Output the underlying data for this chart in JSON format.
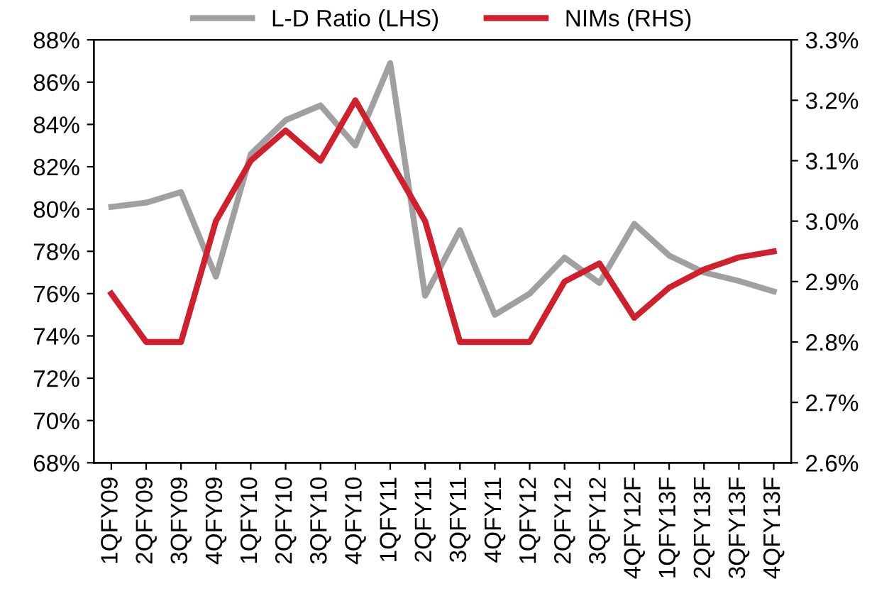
{
  "chart_data": {
    "type": "line",
    "categories": [
      "1QFY09",
      "2QFY09",
      "3QFY09",
      "4QFY09",
      "1QFY10",
      "2QFY10",
      "3QFY10",
      "4QFY10",
      "1QFY11",
      "2QFY11",
      "3QFY11",
      "4QFY11",
      "1QFY12",
      "2QFY12",
      "3QFY12",
      "4QFY12F",
      "1QFY13F",
      "2QFY13F",
      "3QFY13F",
      "4QFY13F"
    ],
    "series": [
      {
        "name": "L-D Ratio (LHS)",
        "color": "#a0a0a0",
        "values": [
          80.1,
          80.3,
          80.8,
          76.8,
          82.6,
          84.2,
          84.9,
          83.0,
          86.9,
          75.9,
          79.0,
          75.0,
          76.0,
          77.7,
          76.5,
          79.3,
          77.8,
          77.0,
          76.6,
          76.1
        ]
      },
      {
        "name": "NIMs (RHS)",
        "color": "#d0202e",
        "axis": "y2",
        "values": [
          2.88,
          2.8,
          2.8,
          3.0,
          3.1,
          3.15,
          3.1,
          3.2,
          3.1,
          3.0,
          2.8,
          2.8,
          2.8,
          2.9,
          2.93,
          2.84,
          2.89,
          2.92,
          2.94,
          2.95
        ]
      }
    ],
    "ylim": [
      68,
      88
    ],
    "yticks": [
      {
        "value": 68,
        "label": "68%"
      },
      {
        "value": 70,
        "label": "70%"
      },
      {
        "value": 72,
        "label": "72%"
      },
      {
        "value": 74,
        "label": "74%"
      },
      {
        "value": 76,
        "label": "76%"
      },
      {
        "value": 78,
        "label": "78%"
      },
      {
        "value": 80,
        "label": "80%"
      },
      {
        "value": 82,
        "label": "82%"
      },
      {
        "value": 84,
        "label": "84%"
      },
      {
        "value": 86,
        "label": "86%"
      },
      {
        "value": 88,
        "label": "88%"
      }
    ],
    "y2lim": [
      2.6,
      3.3
    ],
    "y2ticks": [
      {
        "value": 2.6,
        "label": "2.6%"
      },
      {
        "value": 2.7,
        "label": "2.7%"
      },
      {
        "value": 2.8,
        "label": "2.8%"
      },
      {
        "value": 2.9,
        "label": "2.9%"
      },
      {
        "value": 3.0,
        "label": "3.0%"
      },
      {
        "value": 3.1,
        "label": "3.1%"
      },
      {
        "value": 3.2,
        "label": "3.2%"
      },
      {
        "value": 3.3,
        "label": "3.3%"
      }
    ],
    "legend": "top",
    "marker": "none",
    "line_style": "solid"
  }
}
